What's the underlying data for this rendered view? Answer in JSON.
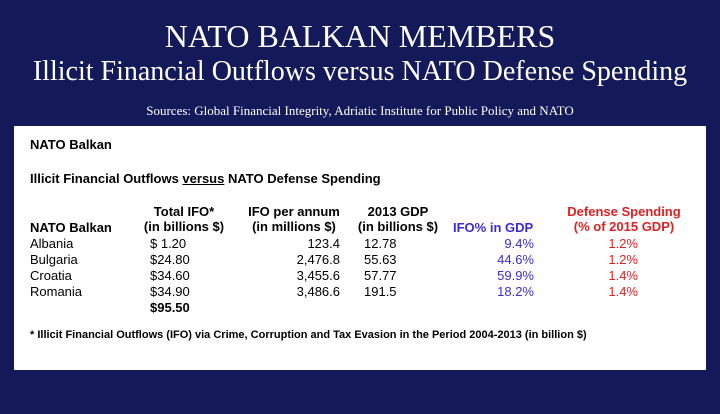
{
  "slide": {
    "title_line1": "NATO BALKAN MEMBERS",
    "title_line2": "Illicit Financial Outflows versus NATO Defense Spending",
    "sources": "Sources: Global Financial Integrity, Adriatic Institute for Public Policy and NATO"
  },
  "panel": {
    "heading": "NATO Balkan",
    "subheading_part1": "Illicit Financial Outflows ",
    "subheading_underlined": "versus",
    "subheading_part2": " NATO Defense Spending",
    "columns": {
      "country": "NATO Balkan",
      "total_ifo_l1": "Total IFO*",
      "total_ifo_l2": "(in billions $)",
      "ifo_annum_l1": "IFO per annum",
      "ifo_annum_l2": "(in millions $)",
      "gdp_l1": "2013 GDP",
      "gdp_l2": "(in billions $)",
      "ifo_pct": "IFO% in GDP",
      "defense_l1": "Defense Spending",
      "defense_l2": "(% of 2015 GDP)"
    },
    "rows": [
      {
        "country": "Albania",
        "total_ifo": "$  1.20",
        "ifo_annum": "123.4",
        "gdp": "12.78",
        "ifo_pct": "9.4%",
        "defense": "1.2%"
      },
      {
        "country": "Bulgaria",
        "total_ifo": "$24.80",
        "ifo_annum": "2,476.8",
        "gdp": "55.63",
        "ifo_pct": "44.6%",
        "defense": "1.2%"
      },
      {
        "country": "Croatia",
        "total_ifo": "$34.60",
        "ifo_annum": "3,455.6",
        "gdp": "57.77",
        "ifo_pct": "59.9%",
        "defense": "1.4%"
      },
      {
        "country": "Romania",
        "total_ifo": "$34.90",
        "ifo_annum": "3,486.6",
        "gdp": "191.5",
        "ifo_pct": "18.2%",
        "defense": "1.4%"
      }
    ],
    "total": "$95.50",
    "footnote": "* Illicit Financial Outflows (IFO) via Crime, Corruption and Tax Evasion in the Period 2004-2013 (in billion $)"
  },
  "colors": {
    "background": "#14195a",
    "ifo_pct": "#3a2bd6",
    "defense": "#e02020"
  }
}
